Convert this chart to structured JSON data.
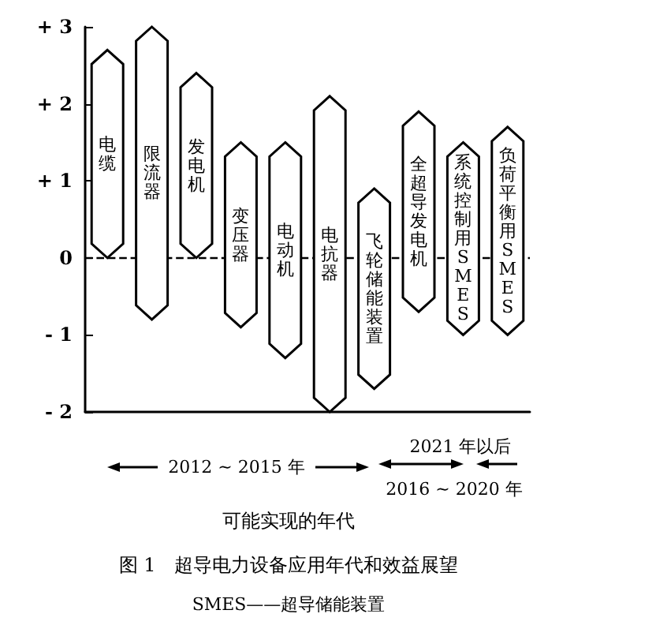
{
  "chart_data": {
    "type": "bar",
    "title": "图 1　超导电力设备应用年代和效益展望",
    "subtitle": "SMES——超导储能装置",
    "xlabel": "可能实现的年代",
    "categories": [
      "电缆",
      "限流器",
      "发电机",
      "变压器",
      "电动机",
      "电抗器",
      "飞轮储能装置",
      "全超导发电机",
      "系统控制用SMES",
      "负荷平衡用SMES"
    ],
    "base": [
      0,
      -0.8,
      0,
      -0.9,
      -1.3,
      -2.0,
      -1.7,
      -0.7,
      -1.0,
      -1.0
    ],
    "values": [
      2.7,
      3.8,
      2.4,
      2.4,
      2.8,
      4.1,
      2.6,
      2.6,
      2.5,
      2.7
    ],
    "color": "#ffffff",
    "ylim": [
      -2,
      3
    ],
    "yticks": [
      {
        "value": -2,
        "label": "- 2"
      },
      {
        "value": -1,
        "label": "- 1"
      },
      0,
      {
        "value": 1,
        "label": "+ 1"
      },
      {
        "value": 2,
        "label": "+ 2"
      },
      {
        "value": 3,
        "label": "+ 3"
      }
    ],
    "ref_lines": [
      {
        "axis": "y",
        "value": 0,
        "line_style": "dashed",
        "color": "#000000"
      }
    ],
    "annotations": [
      "2012 ~ 2015 年",
      "2016 ~ 2020 年",
      "2021 年以后"
    ],
    "grid": false
  }
}
